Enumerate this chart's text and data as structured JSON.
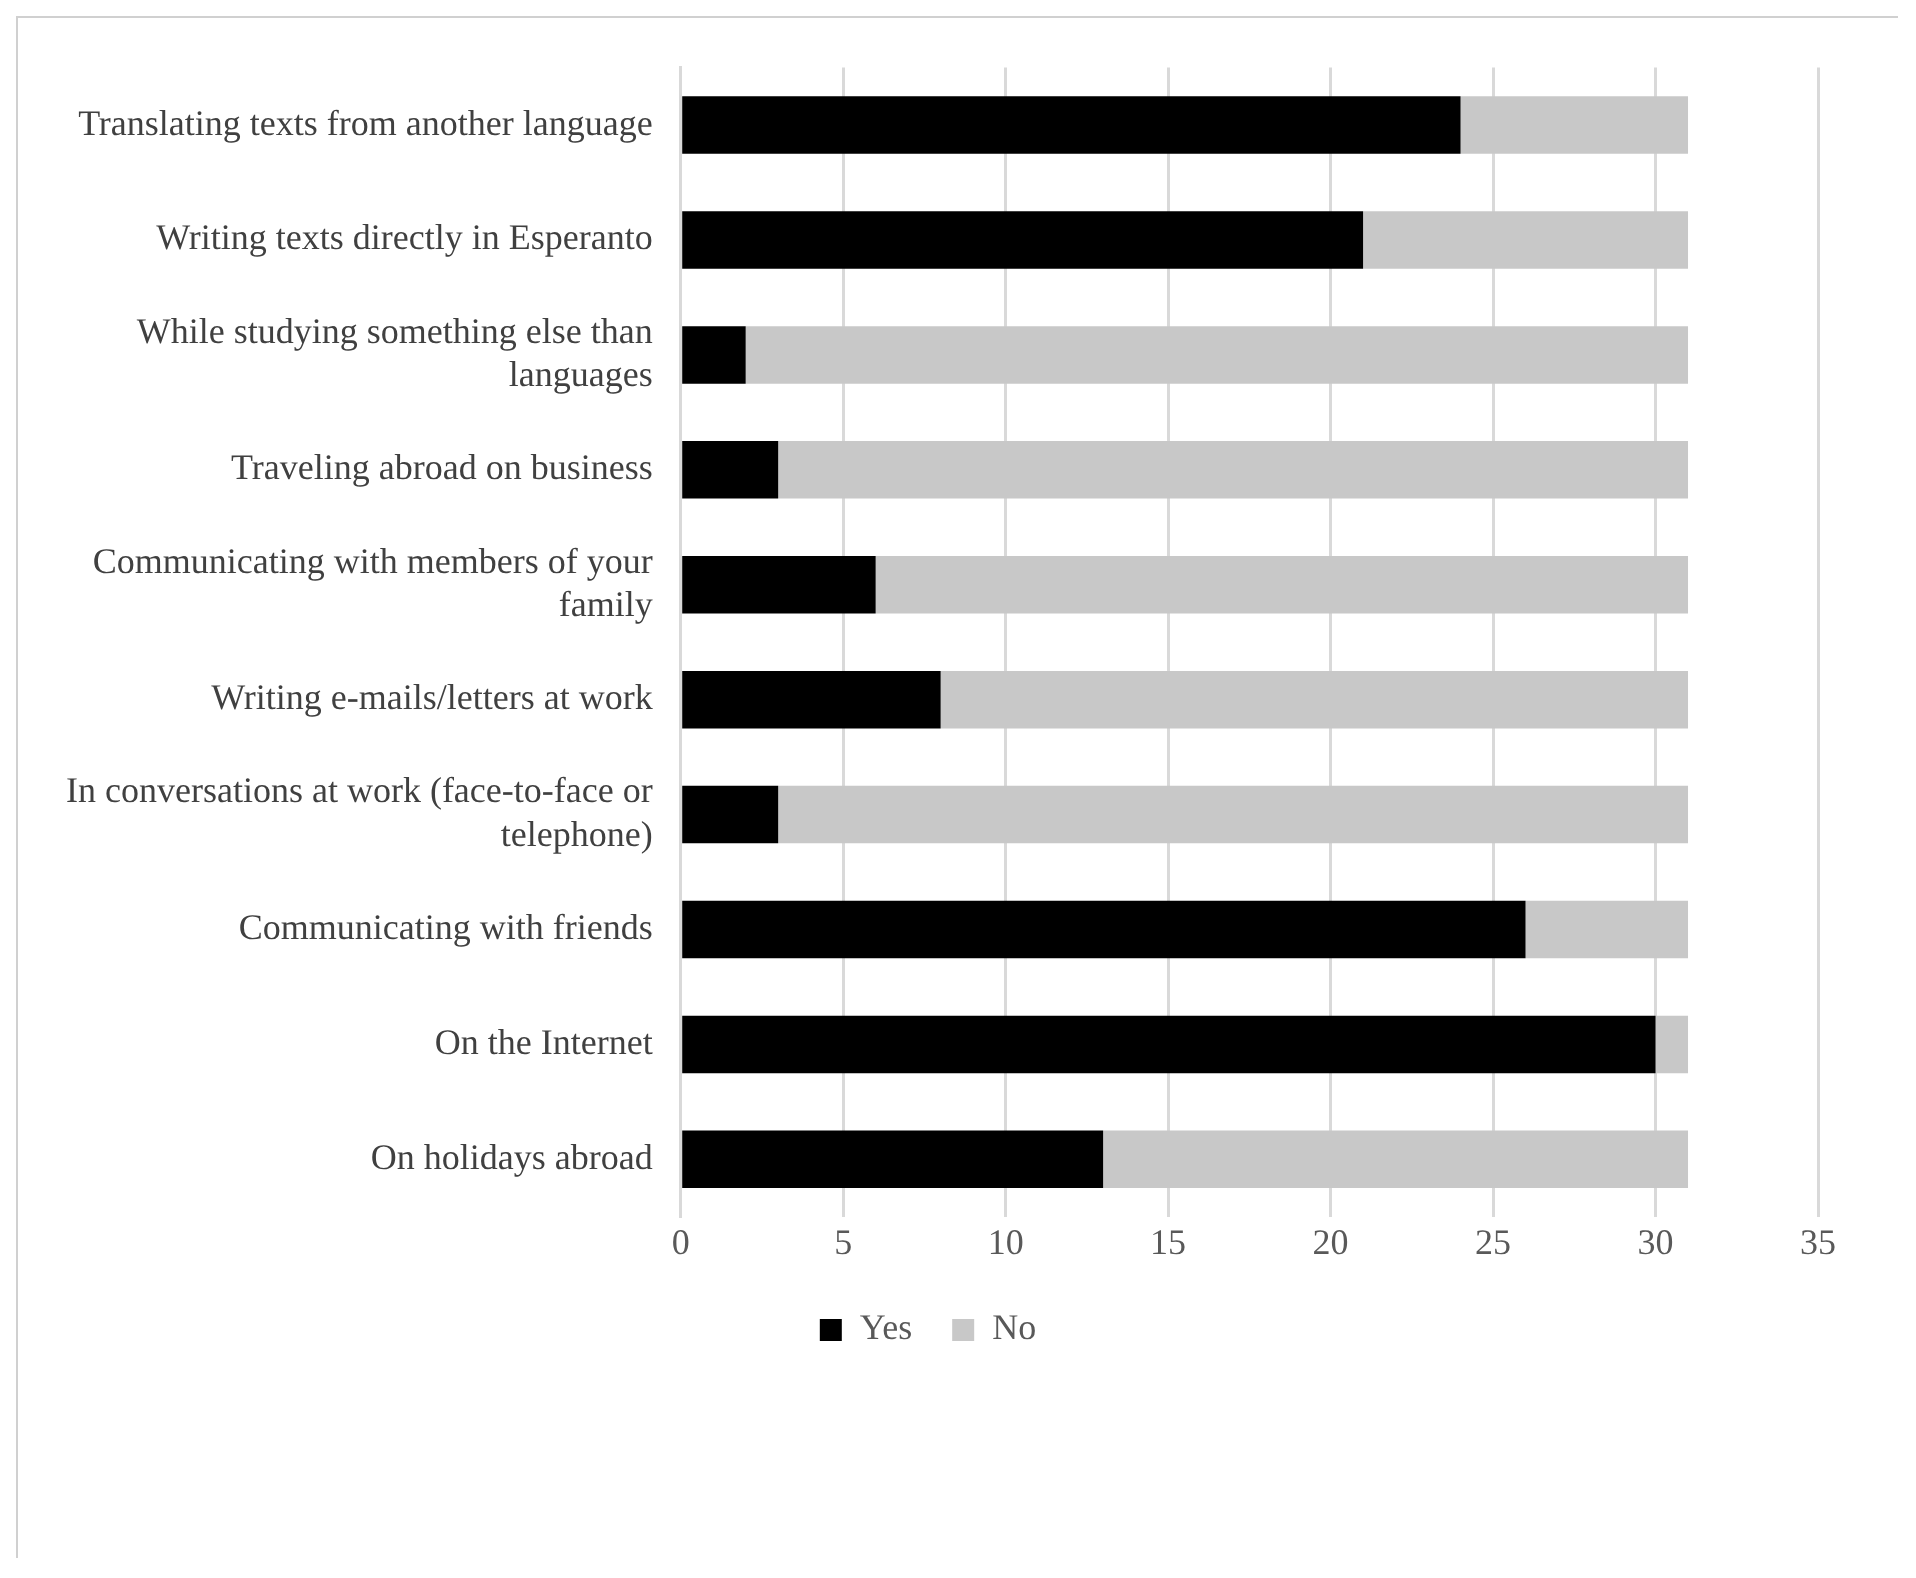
{
  "chart_data": {
    "type": "bar",
    "orientation": "horizontal",
    "stacked": true,
    "categories": [
      "Translating texts from another language",
      "Writing texts directly in Esperanto",
      "While studying something else than languages",
      "Traveling abroad on business",
      "Communicating with members of your family",
      "Writing e-mails/letters at work",
      "In conversations at work (face-to-face or telephone)",
      "Communicating with friends",
      "On the Internet",
      "On holidays abroad"
    ],
    "series": [
      {
        "name": "Yes",
        "color": "#000000",
        "values": [
          24,
          21,
          2,
          3,
          6,
          8,
          3,
          26,
          30,
          13
        ]
      },
      {
        "name": "No",
        "color": "#c8c8c8",
        "values": [
          7,
          10,
          29,
          28,
          25,
          23,
          28,
          5,
          1,
          18
        ]
      }
    ],
    "xlim": [
      0,
      35
    ],
    "xticks": [
      0,
      5,
      10,
      15,
      20,
      25,
      30,
      35
    ],
    "grid": "x",
    "legend": "bottom"
  }
}
